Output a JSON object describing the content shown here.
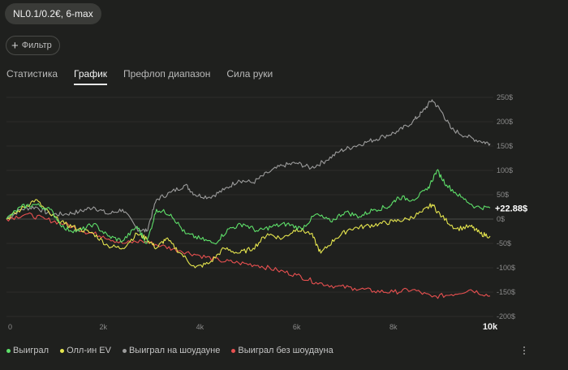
{
  "header": {
    "session_label": "NL0.1/0.2€, 6-max"
  },
  "filter": {
    "label": "Фильтр",
    "icon": "plus-icon"
  },
  "tabs": [
    {
      "label": "Статистика",
      "active": false
    },
    {
      "label": "График",
      "active": true
    },
    {
      "label": "Префлоп диапазон",
      "active": false
    },
    {
      "label": "Сила руки",
      "active": false
    }
  ],
  "legend": [
    {
      "label": "Выиграл",
      "color": "#5ee06a"
    },
    {
      "label": "Олл-ин EV",
      "color": "#e6e64e"
    },
    {
      "label": "Выиграл на шоудауне",
      "color": "#9c9c9c"
    },
    {
      "label": "Выиграл без шоудауна",
      "color": "#e85050"
    }
  ],
  "chart_data": {
    "type": "line",
    "x_ticks": [
      "0",
      "2k",
      "4k",
      "6k",
      "8k",
      "10k"
    ],
    "y_ticks": [
      "250$",
      "200$",
      "150$",
      "100$",
      "50$",
      "0$",
      "-50$",
      "-100$",
      "-150$",
      "-200$"
    ],
    "xlim": [
      0,
      10000
    ],
    "ylim": [
      -200,
      250
    ],
    "end_label": "+22.88$",
    "series": [
      {
        "name": "Выиграл",
        "color": "#5ee06a",
        "points": [
          [
            0,
            0
          ],
          [
            300,
            25
          ],
          [
            600,
            30
          ],
          [
            900,
            20
          ],
          [
            1200,
            -20
          ],
          [
            1500,
            -25
          ],
          [
            1800,
            -10
          ],
          [
            2100,
            -35
          ],
          [
            2400,
            -45
          ],
          [
            2700,
            -15
          ],
          [
            2900,
            -50
          ],
          [
            3100,
            20
          ],
          [
            3400,
            10
          ],
          [
            3700,
            -30
          ],
          [
            4000,
            -40
          ],
          [
            4300,
            -50
          ],
          [
            4600,
            -20
          ],
          [
            4900,
            -10
          ],
          [
            5200,
            -25
          ],
          [
            5500,
            -15
          ],
          [
            5800,
            -10
          ],
          [
            6100,
            -20
          ],
          [
            6400,
            10
          ],
          [
            6700,
            -5
          ],
          [
            7000,
            15
          ],
          [
            7300,
            5
          ],
          [
            7600,
            20
          ],
          [
            7900,
            25
          ],
          [
            8100,
            45
          ],
          [
            8400,
            40
          ],
          [
            8700,
            60
          ],
          [
            8900,
            100
          ],
          [
            9100,
            70
          ],
          [
            9400,
            45
          ],
          [
            9700,
            25
          ],
          [
            10000,
            22.88
          ]
        ]
      },
      {
        "name": "Олл-ин EV",
        "color": "#e6e64e",
        "points": [
          [
            0,
            0
          ],
          [
            300,
            20
          ],
          [
            600,
            40
          ],
          [
            900,
            10
          ],
          [
            1200,
            -10
          ],
          [
            1500,
            -20
          ],
          [
            1800,
            -30
          ],
          [
            2100,
            -55
          ],
          [
            2400,
            -60
          ],
          [
            2700,
            -30
          ],
          [
            2900,
            -40
          ],
          [
            3100,
            -60
          ],
          [
            3300,
            -40
          ],
          [
            3600,
            -70
          ],
          [
            3900,
            -100
          ],
          [
            4200,
            -90
          ],
          [
            4500,
            -60
          ],
          [
            4800,
            -70
          ],
          [
            5100,
            -60
          ],
          [
            5400,
            -30
          ],
          [
            5700,
            -40
          ],
          [
            6000,
            -20
          ],
          [
            6300,
            -30
          ],
          [
            6500,
            -70
          ],
          [
            6800,
            -40
          ],
          [
            7100,
            -20
          ],
          [
            7400,
            -15
          ],
          [
            7700,
            -10
          ],
          [
            8000,
            -5
          ],
          [
            8300,
            0
          ],
          [
            8600,
            15
          ],
          [
            8800,
            30
          ],
          [
            9000,
            5
          ],
          [
            9300,
            -20
          ],
          [
            9600,
            -15
          ],
          [
            9800,
            -30
          ],
          [
            10000,
            -35
          ]
        ]
      },
      {
        "name": "Выиграл на шоудауне",
        "color": "#9c9c9c",
        "points": [
          [
            0,
            0
          ],
          [
            300,
            20
          ],
          [
            600,
            25
          ],
          [
            900,
            10
          ],
          [
            1200,
            10
          ],
          [
            1500,
            15
          ],
          [
            1800,
            25
          ],
          [
            2100,
            10
          ],
          [
            2400,
            20
          ],
          [
            2700,
            -20
          ],
          [
            2900,
            -25
          ],
          [
            3100,
            40
          ],
          [
            3400,
            55
          ],
          [
            3700,
            70
          ],
          [
            3900,
            50
          ],
          [
            4200,
            45
          ],
          [
            4500,
            60
          ],
          [
            4800,
            80
          ],
          [
            5100,
            75
          ],
          [
            5400,
            95
          ],
          [
            5700,
            110
          ],
          [
            6000,
            115
          ],
          [
            6300,
            105
          ],
          [
            6600,
            120
          ],
          [
            6900,
            140
          ],
          [
            7200,
            150
          ],
          [
            7500,
            160
          ],
          [
            7800,
            170
          ],
          [
            8100,
            180
          ],
          [
            8400,
            200
          ],
          [
            8600,
            220
          ],
          [
            8800,
            245
          ],
          [
            9000,
            220
          ],
          [
            9200,
            185
          ],
          [
            9500,
            170
          ],
          [
            9800,
            160
          ],
          [
            10000,
            155
          ]
        ]
      },
      {
        "name": "Выиграл без шоудауна",
        "color": "#e85050",
        "points": [
          [
            0,
            0
          ],
          [
            400,
            10
          ],
          [
            800,
            0
          ],
          [
            1200,
            -10
          ],
          [
            1600,
            -25
          ],
          [
            2000,
            -35
          ],
          [
            2400,
            -50
          ],
          [
            2800,
            -45
          ],
          [
            3200,
            -55
          ],
          [
            3600,
            -65
          ],
          [
            4000,
            -75
          ],
          [
            4400,
            -85
          ],
          [
            4800,
            -90
          ],
          [
            5200,
            -95
          ],
          [
            5600,
            -105
          ],
          [
            6000,
            -115
          ],
          [
            6400,
            -130
          ],
          [
            6800,
            -138
          ],
          [
            7200,
            -142
          ],
          [
            7600,
            -148
          ],
          [
            8000,
            -150
          ],
          [
            8400,
            -145
          ],
          [
            8800,
            -160
          ],
          [
            9200,
            -155
          ],
          [
            9600,
            -145
          ],
          [
            10000,
            -158
          ]
        ]
      }
    ]
  }
}
